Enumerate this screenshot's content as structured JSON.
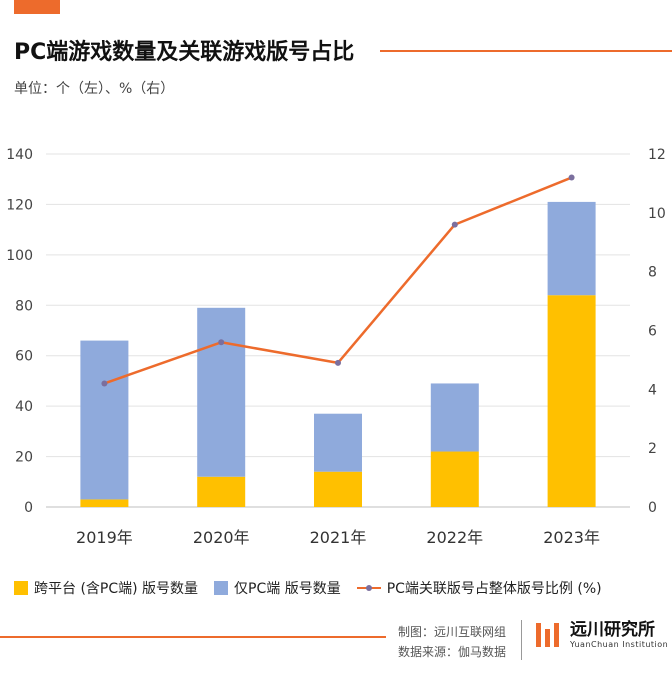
{
  "header": {
    "title": "PC端游戏数量及关联游戏版号占比",
    "unit": "单位：个（左）、%（右）"
  },
  "legend": {
    "cross_platform": "跨平台 (含PC端) 版号数量",
    "pc_only": "仅PC端 版号数量",
    "ratio": "PC端关联版号占整体版号比例 (%)"
  },
  "footer": {
    "made_by": "制图：远川互联网组",
    "source": "数据来源：伽马数据",
    "logo_cn": "远川研究所",
    "logo_en": "YuanChuan Institution"
  },
  "colors": {
    "accent": "#ED6B2C",
    "cross_platform": "#FFC000",
    "pc_only": "#8FAADC",
    "marker": "#7B6F9E"
  },
  "chart_data": {
    "type": "bar",
    "stacked": true,
    "categories": [
      "2019年",
      "2020年",
      "2021年",
      "2022年",
      "2023年"
    ],
    "series": [
      {
        "name": "跨平台 (含PC端) 版号数量",
        "type": "bar",
        "axis": "left",
        "values": [
          3,
          12,
          14,
          22,
          84
        ]
      },
      {
        "name": "仅PC端 版号数量",
        "type": "bar",
        "axis": "left",
        "values": [
          63,
          67,
          23,
          27,
          37
        ]
      },
      {
        "name": "PC端关联版号占整体版号比例 (%)",
        "type": "line",
        "axis": "right",
        "values": [
          4.2,
          5.6,
          4.9,
          9.6,
          11.2
        ]
      }
    ],
    "y_left": {
      "min": 0,
      "max": 140,
      "ticks": [
        0,
        20,
        40,
        60,
        80,
        100,
        120,
        140
      ]
    },
    "y_right": {
      "min": 0,
      "max": 12,
      "ticks": [
        0,
        2,
        4,
        6,
        8,
        10,
        12
      ]
    },
    "grid": true,
    "legend_position": "bottom"
  }
}
